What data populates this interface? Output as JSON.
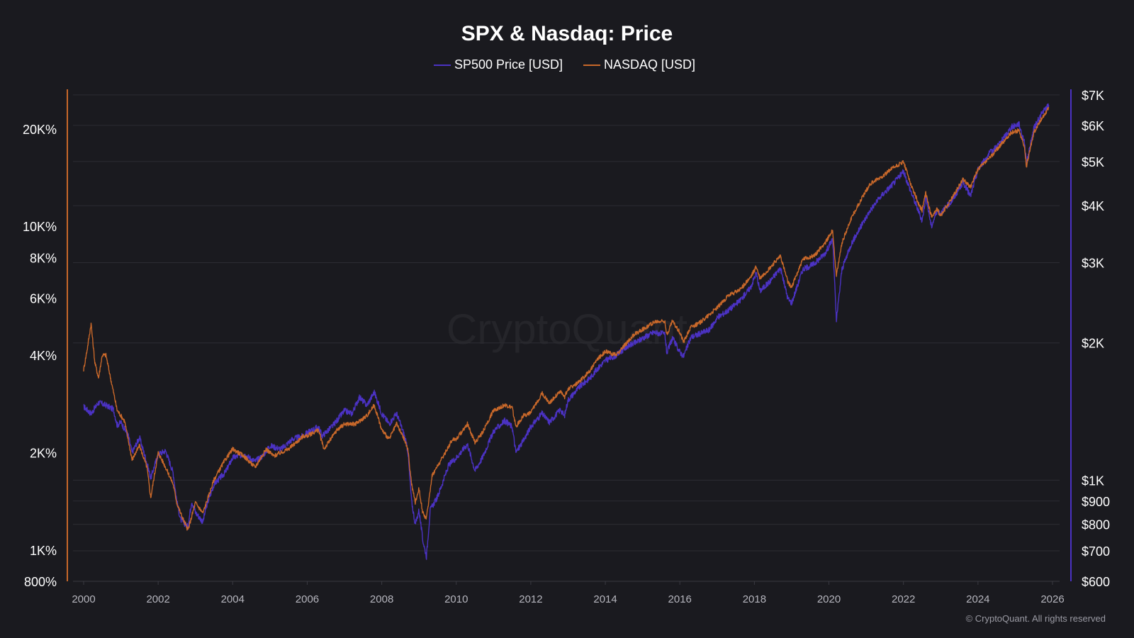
{
  "chart_data": {
    "type": "line",
    "title": "SPX & Nasdaq: Price",
    "watermark": "CryptoQuant",
    "copyright": "© CryptoQuant. All rights reserved",
    "xlabel": "",
    "x_range": [
      2000.0,
      2026.0
    ],
    "x_ticks": [
      "2000",
      "2002",
      "2004",
      "2006",
      "2008",
      "2010",
      "2012",
      "2014",
      "2016",
      "2018",
      "2020",
      "2022",
      "2024",
      "2026"
    ],
    "left_axis": {
      "label": "",
      "scale": "log",
      "range": [
        800,
        26500
      ],
      "ticks": [
        {
          "value": 800,
          "label": "800%"
        },
        {
          "value": 1000,
          "label": "1K%"
        },
        {
          "value": 2000,
          "label": "2K%"
        },
        {
          "value": 4000,
          "label": "4K%"
        },
        {
          "value": 6000,
          "label": "6K%"
        },
        {
          "value": 8000,
          "label": "8K%"
        },
        {
          "value": 10000,
          "label": "10K%"
        },
        {
          "value": 20000,
          "label": "20K%"
        }
      ],
      "color": "#c8682a"
    },
    "right_axis": {
      "label": "",
      "scale": "log",
      "range": [
        600,
        7200
      ],
      "ticks": [
        {
          "value": 600,
          "label": "$600"
        },
        {
          "value": 700,
          "label": "$700"
        },
        {
          "value": 800,
          "label": "$800"
        },
        {
          "value": 900,
          "label": "$900"
        },
        {
          "value": 1000,
          "label": "$1K"
        },
        {
          "value": 2000,
          "label": "$2K"
        },
        {
          "value": 3000,
          "label": "$3K"
        },
        {
          "value": 4000,
          "label": "$4K"
        },
        {
          "value": 5000,
          "label": "$5K"
        },
        {
          "value": 6000,
          "label": "$6K"
        },
        {
          "value": 7000,
          "label": "$7K"
        }
      ],
      "color": "#4b32c3"
    },
    "grid": true,
    "legend_position": "top-center",
    "series": [
      {
        "name": "SP500 Price [USD]",
        "axis": "right",
        "color": "#4b32c3",
        "points": [
          [
            2000.0,
            1450
          ],
          [
            2000.2,
            1400
          ],
          [
            2000.4,
            1480
          ],
          [
            2000.6,
            1460
          ],
          [
            2000.8,
            1430
          ],
          [
            2000.9,
            1320
          ],
          [
            2001.0,
            1340
          ],
          [
            2001.2,
            1250
          ],
          [
            2001.3,
            1150
          ],
          [
            2001.5,
            1240
          ],
          [
            2001.7,
            1090
          ],
          [
            2001.8,
            1010
          ],
          [
            2002.0,
            1140
          ],
          [
            2002.2,
            1160
          ],
          [
            2002.4,
            1040
          ],
          [
            2002.5,
            900
          ],
          [
            2002.6,
            820
          ],
          [
            2002.8,
            790
          ],
          [
            2002.9,
            900
          ],
          [
            2003.0,
            850
          ],
          [
            2003.2,
            810
          ],
          [
            2003.3,
            880
          ],
          [
            2003.5,
            980
          ],
          [
            2003.8,
            1040
          ],
          [
            2004.0,
            1120
          ],
          [
            2004.3,
            1140
          ],
          [
            2004.6,
            1100
          ],
          [
            2004.8,
            1130
          ],
          [
            2005.0,
            1190
          ],
          [
            2005.3,
            1170
          ],
          [
            2005.6,
            1230
          ],
          [
            2005.9,
            1250
          ],
          [
            2006.0,
            1270
          ],
          [
            2006.3,
            1310
          ],
          [
            2006.4,
            1250
          ],
          [
            2006.7,
            1320
          ],
          [
            2007.0,
            1420
          ],
          [
            2007.2,
            1400
          ],
          [
            2007.4,
            1520
          ],
          [
            2007.6,
            1460
          ],
          [
            2007.8,
            1560
          ],
          [
            2008.0,
            1400
          ],
          [
            2008.2,
            1330
          ],
          [
            2008.4,
            1400
          ],
          [
            2008.6,
            1260
          ],
          [
            2008.7,
            1160
          ],
          [
            2008.8,
            900
          ],
          [
            2008.9,
            800
          ],
          [
            2009.0,
            860
          ],
          [
            2009.1,
            740
          ],
          [
            2009.2,
            680
          ],
          [
            2009.3,
            860
          ],
          [
            2009.5,
            920
          ],
          [
            2009.8,
            1080
          ],
          [
            2010.0,
            1120
          ],
          [
            2010.3,
            1200
          ],
          [
            2010.5,
            1050
          ],
          [
            2010.7,
            1120
          ],
          [
            2011.0,
            1280
          ],
          [
            2011.3,
            1350
          ],
          [
            2011.5,
            1310
          ],
          [
            2011.6,
            1150
          ],
          [
            2011.8,
            1220
          ],
          [
            2012.0,
            1310
          ],
          [
            2012.3,
            1400
          ],
          [
            2012.5,
            1340
          ],
          [
            2012.8,
            1430
          ],
          [
            2012.9,
            1380
          ],
          [
            2013.0,
            1500
          ],
          [
            2013.3,
            1600
          ],
          [
            2013.6,
            1680
          ],
          [
            2013.8,
            1760
          ],
          [
            2014.0,
            1830
          ],
          [
            2014.3,
            1880
          ],
          [
            2014.6,
            1970
          ],
          [
            2014.8,
            2000
          ],
          [
            2015.0,
            2050
          ],
          [
            2015.3,
            2110
          ],
          [
            2015.6,
            2090
          ],
          [
            2015.65,
            1900
          ],
          [
            2015.8,
            2050
          ],
          [
            2016.0,
            1910
          ],
          [
            2016.1,
            1870
          ],
          [
            2016.3,
            2060
          ],
          [
            2016.5,
            2090
          ],
          [
            2016.8,
            2140
          ],
          [
            2017.0,
            2270
          ],
          [
            2017.3,
            2360
          ],
          [
            2017.6,
            2470
          ],
          [
            2017.9,
            2650
          ],
          [
            2018.05,
            2850
          ],
          [
            2018.15,
            2600
          ],
          [
            2018.4,
            2720
          ],
          [
            2018.7,
            2920
          ],
          [
            2018.9,
            2500
          ],
          [
            2019.0,
            2450
          ],
          [
            2019.3,
            2900
          ],
          [
            2019.6,
            2980
          ],
          [
            2019.9,
            3150
          ],
          [
            2020.1,
            3380
          ],
          [
            2020.2,
            2237
          ],
          [
            2020.35,
            2900
          ],
          [
            2020.6,
            3300
          ],
          [
            2020.9,
            3650
          ],
          [
            2021.1,
            3900
          ],
          [
            2021.4,
            4200
          ],
          [
            2021.7,
            4450
          ],
          [
            2022.0,
            4750
          ],
          [
            2022.2,
            4300
          ],
          [
            2022.4,
            3900
          ],
          [
            2022.5,
            3700
          ],
          [
            2022.6,
            4200
          ],
          [
            2022.75,
            3600
          ],
          [
            2022.9,
            3900
          ],
          [
            2023.0,
            3850
          ],
          [
            2023.3,
            4100
          ],
          [
            2023.6,
            4500
          ],
          [
            2023.8,
            4200
          ],
          [
            2024.0,
            4800
          ],
          [
            2024.3,
            5200
          ],
          [
            2024.6,
            5500
          ],
          [
            2024.9,
            5950
          ],
          [
            2025.1,
            6050
          ],
          [
            2025.25,
            5500
          ],
          [
            2025.3,
            4950
          ],
          [
            2025.5,
            5900
          ],
          [
            2025.7,
            6350
          ],
          [
            2025.9,
            6650
          ]
        ]
      },
      {
        "name": "NASDAQ [USD]",
        "axis": "left",
        "color": "#c8682a",
        "points": [
          [
            2000.0,
            3600
          ],
          [
            2000.1,
            4200
          ],
          [
            2000.2,
            5000
          ],
          [
            2000.3,
            3800
          ],
          [
            2000.4,
            3400
          ],
          [
            2000.5,
            4000
          ],
          [
            2000.6,
            4000
          ],
          [
            2000.7,
            3500
          ],
          [
            2000.9,
            2700
          ],
          [
            2001.0,
            2600
          ],
          [
            2001.1,
            2500
          ],
          [
            2001.3,
            1900
          ],
          [
            2001.5,
            2100
          ],
          [
            2001.7,
            1800
          ],
          [
            2001.8,
            1450
          ],
          [
            2002.0,
            2000
          ],
          [
            2002.2,
            1800
          ],
          [
            2002.4,
            1600
          ],
          [
            2002.5,
            1400
          ],
          [
            2002.6,
            1300
          ],
          [
            2002.8,
            1150
          ],
          [
            2003.0,
            1400
          ],
          [
            2003.2,
            1300
          ],
          [
            2003.5,
            1650
          ],
          [
            2003.8,
            1900
          ],
          [
            2004.0,
            2050
          ],
          [
            2004.3,
            1950
          ],
          [
            2004.6,
            1800
          ],
          [
            2004.9,
            2050
          ],
          [
            2005.1,
            1950
          ],
          [
            2005.5,
            2050
          ],
          [
            2005.9,
            2250
          ],
          [
            2006.0,
            2250
          ],
          [
            2006.3,
            2350
          ],
          [
            2006.45,
            2050
          ],
          [
            2006.8,
            2350
          ],
          [
            2007.0,
            2450
          ],
          [
            2007.3,
            2450
          ],
          [
            2007.6,
            2600
          ],
          [
            2007.8,
            2800
          ],
          [
            2008.0,
            2350
          ],
          [
            2008.2,
            2200
          ],
          [
            2008.4,
            2450
          ],
          [
            2008.6,
            2200
          ],
          [
            2008.7,
            2050
          ],
          [
            2008.8,
            1600
          ],
          [
            2008.9,
            1400
          ],
          [
            2009.0,
            1550
          ],
          [
            2009.1,
            1300
          ],
          [
            2009.2,
            1250
          ],
          [
            2009.35,
            1700
          ],
          [
            2009.6,
            1900
          ],
          [
            2009.9,
            2200
          ],
          [
            2010.0,
            2200
          ],
          [
            2010.3,
            2450
          ],
          [
            2010.5,
            2150
          ],
          [
            2010.7,
            2300
          ],
          [
            2011.0,
            2700
          ],
          [
            2011.3,
            2800
          ],
          [
            2011.5,
            2750
          ],
          [
            2011.6,
            2400
          ],
          [
            2011.8,
            2600
          ],
          [
            2012.0,
            2650
          ],
          [
            2012.3,
            3050
          ],
          [
            2012.5,
            2850
          ],
          [
            2012.8,
            3100
          ],
          [
            2012.9,
            2950
          ],
          [
            2013.0,
            3150
          ],
          [
            2013.3,
            3300
          ],
          [
            2013.6,
            3600
          ],
          [
            2013.8,
            3900
          ],
          [
            2014.0,
            4100
          ],
          [
            2014.3,
            4000
          ],
          [
            2014.6,
            4400
          ],
          [
            2014.8,
            4650
          ],
          [
            2015.0,
            4800
          ],
          [
            2015.3,
            5050
          ],
          [
            2015.6,
            5100
          ],
          [
            2015.65,
            4600
          ],
          [
            2015.8,
            5100
          ],
          [
            2016.0,
            4700
          ],
          [
            2016.1,
            4400
          ],
          [
            2016.3,
            4900
          ],
          [
            2016.5,
            5000
          ],
          [
            2016.8,
            5350
          ],
          [
            2017.0,
            5600
          ],
          [
            2017.3,
            6100
          ],
          [
            2017.6,
            6350
          ],
          [
            2017.9,
            6950
          ],
          [
            2018.05,
            7500
          ],
          [
            2018.15,
            6900
          ],
          [
            2018.4,
            7400
          ],
          [
            2018.7,
            8100
          ],
          [
            2018.9,
            6700
          ],
          [
            2019.0,
            6500
          ],
          [
            2019.3,
            7900
          ],
          [
            2019.6,
            8100
          ],
          [
            2019.9,
            8900
          ],
          [
            2020.1,
            9700
          ],
          [
            2020.2,
            7000
          ],
          [
            2020.35,
            8900
          ],
          [
            2020.6,
            10600
          ],
          [
            2020.9,
            12300
          ],
          [
            2021.1,
            13500
          ],
          [
            2021.4,
            14200
          ],
          [
            2021.7,
            15100
          ],
          [
            2022.0,
            15800
          ],
          [
            2022.2,
            13500
          ],
          [
            2022.4,
            11800
          ],
          [
            2022.5,
            11200
          ],
          [
            2022.6,
            12700
          ],
          [
            2022.75,
            10700
          ],
          [
            2022.9,
            11300
          ],
          [
            2023.0,
            10800
          ],
          [
            2023.3,
            12200
          ],
          [
            2023.6,
            14000
          ],
          [
            2023.8,
            13200
          ],
          [
            2024.0,
            15000
          ],
          [
            2024.3,
            16200
          ],
          [
            2024.6,
            17800
          ],
          [
            2024.9,
            19500
          ],
          [
            2025.1,
            19800
          ],
          [
            2025.25,
            17500
          ],
          [
            2025.3,
            15300
          ],
          [
            2025.5,
            19500
          ],
          [
            2025.7,
            21500
          ],
          [
            2025.9,
            23200
          ]
        ]
      }
    ]
  }
}
